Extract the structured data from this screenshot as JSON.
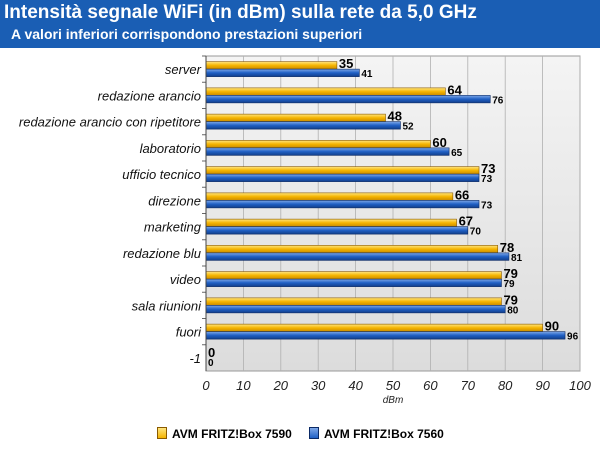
{
  "header": {
    "title": "Intensità segnale WiFi (in dBm) sulla rete da 5,0 GHz",
    "subtitle": "A valori inferiori corrispondono prestazioni superiori",
    "background": "#1a5eb4"
  },
  "chart_data": {
    "type": "bar",
    "orientation": "horizontal",
    "categories": [
      "server",
      "redazione arancio",
      "redazione arancio con ripetitore",
      "laboratorio",
      "ufficio tecnico",
      "direzione",
      "marketing",
      "redazione blu",
      "video",
      "sala riunioni",
      "fuori",
      "-1"
    ],
    "series": [
      {
        "name": "AVM FRITZ!Box 7590",
        "color": "#f5b400",
        "values": [
          35,
          64,
          48,
          60,
          73,
          66,
          67,
          78,
          79,
          79,
          90,
          0
        ]
      },
      {
        "name": "AVM FRITZ!Box 7560",
        "color": "#1f5fc4",
        "values": [
          41,
          76,
          52,
          65,
          73,
          73,
          70,
          81,
          79,
          80,
          96,
          0
        ]
      }
    ],
    "xlabel": "dBm",
    "xlim": [
      0,
      100
    ],
    "xticks": [
      0,
      10,
      20,
      30,
      40,
      50,
      60,
      70,
      80,
      90,
      100
    ],
    "grid": true,
    "legend_position": "bottom"
  }
}
